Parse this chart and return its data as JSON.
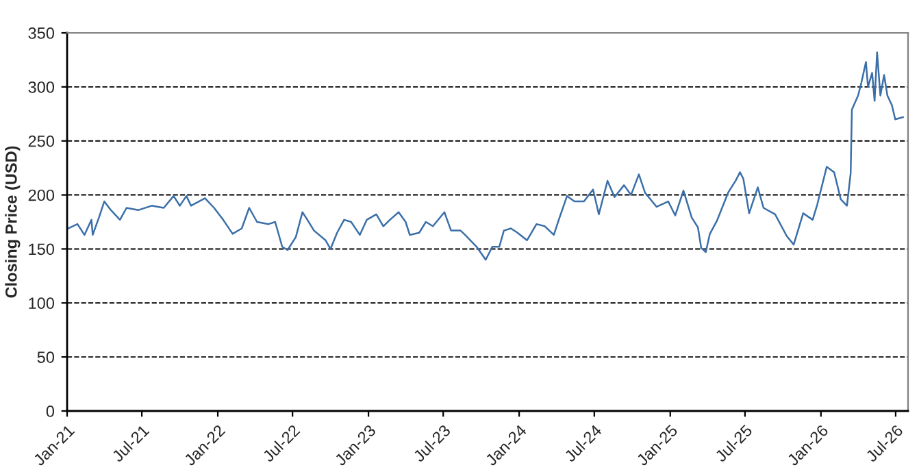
{
  "chart_data": {
    "type": "line",
    "ylabel": "Closing Price (USD)",
    "x": [
      "2021-01-04",
      "2021-01-26",
      "2021-02-12",
      "2021-03-01",
      "2021-03-04",
      "2021-03-20",
      "2021-04-01",
      "2021-04-17",
      "2021-05-09",
      "2021-05-25",
      "2021-06-23",
      "2021-07-25",
      "2021-08-23",
      "2021-09-16",
      "2021-10-01",
      "2021-10-17",
      "2021-10-28",
      "2021-12-01",
      "2021-12-23",
      "2022-01-14",
      "2022-02-06",
      "2022-02-28",
      "2022-03-18",
      "2022-04-06",
      "2022-05-04",
      "2022-05-20",
      "2022-06-06",
      "2022-06-19",
      "2022-07-09",
      "2022-07-25",
      "2022-08-06",
      "2022-08-22",
      "2022-09-19",
      "2022-10-01",
      "2022-10-17",
      "2022-11-03",
      "2022-11-20",
      "2022-12-11",
      "2022-12-28",
      "2023-01-20",
      "2023-02-06",
      "2023-02-22",
      "2023-03-15",
      "2023-04-01",
      "2023-04-11",
      "2023-05-04",
      "2023-05-20",
      "2023-06-06",
      "2023-07-04",
      "2023-07-20",
      "2023-08-12",
      "2023-08-23",
      "2023-09-20",
      "2023-10-12",
      "2023-10-28",
      "2023-11-14",
      "2023-11-25",
      "2023-12-12",
      "2023-12-28",
      "2024-01-20",
      "2024-02-12",
      "2024-03-03",
      "2024-03-25",
      "2024-04-06",
      "2024-04-26",
      "2024-05-14",
      "2024-06-06",
      "2024-06-28",
      "2024-07-12",
      "2024-08-02",
      "2024-08-19",
      "2024-09-11",
      "2024-09-28",
      "2024-10-17",
      "2024-11-01",
      "2024-11-29",
      "2024-12-27",
      "2025-01-13",
      "2025-02-02",
      "2025-02-22",
      "2025-03-09",
      "2025-03-17",
      "2025-03-28",
      "2025-04-07",
      "2025-04-24",
      "2025-05-21",
      "2025-06-08",
      "2025-06-19",
      "2025-06-27",
      "2025-07-11",
      "2025-08-01",
      "2025-08-15",
      "2025-09-12",
      "2025-10-10",
      "2025-10-27",
      "2025-11-19",
      "2025-12-12",
      "2025-12-23",
      "2026-01-15",
      "2026-02-02",
      "2026-02-18",
      "2026-03-05",
      "2026-03-14",
      "2026-03-17",
      "2026-04-01",
      "2026-04-09",
      "2026-04-20",
      "2026-04-25",
      "2026-05-05",
      "2026-05-11",
      "2026-05-17",
      "2026-05-25",
      "2026-06-03",
      "2026-06-11",
      "2026-06-22",
      "2026-06-30",
      "2026-07-19"
    ],
    "series": [
      {
        "color": "#3b6fa8",
        "values": [
          169,
          173,
          163,
          177,
          163,
          180,
          194,
          186,
          177,
          188,
          186,
          190,
          188,
          199,
          190,
          199,
          190,
          197,
          188,
          177,
          164,
          169,
          188,
          175,
          173,
          175,
          152,
          149,
          161,
          184,
          177,
          167,
          158,
          150,
          165,
          177,
          175,
          163,
          177,
          182,
          171,
          177,
          184,
          175,
          163,
          165,
          175,
          171,
          184,
          167,
          167,
          163,
          152,
          140,
          152,
          152,
          167,
          169,
          165,
          158,
          173,
          171,
          163,
          177,
          199,
          194,
          194,
          205,
          182,
          213,
          198,
          209,
          200,
          219,
          202,
          189,
          194,
          181,
          204,
          179,
          170,
          151,
          147,
          164,
          176,
          202,
          213,
          221,
          215,
          183,
          207,
          188,
          182,
          162,
          154,
          183,
          177,
          191,
          226,
          221,
          196,
          190,
          220,
          279,
          292,
          304,
          323,
          300,
          313,
          287,
          332,
          292,
          311,
          292,
          283,
          270,
          272
        ]
      }
    ],
    "xlim": [
      "2021-01-01",
      "2026-07-31"
    ],
    "xticks": [
      {
        "value": "2021-01-01",
        "label": "Jan-21"
      },
      {
        "value": "2021-07-01",
        "label": "Jul-21"
      },
      {
        "value": "2022-01-01",
        "label": "Jan-22"
      },
      {
        "value": "2022-07-01",
        "label": "Jul-22"
      },
      {
        "value": "2023-01-01",
        "label": "Jan-23"
      },
      {
        "value": "2023-07-01",
        "label": "Jul-23"
      },
      {
        "value": "2024-01-01",
        "label": "Jan-24"
      },
      {
        "value": "2024-07-01",
        "label": "Jul-24"
      },
      {
        "value": "2025-01-01",
        "label": "Jan-25"
      },
      {
        "value": "2025-07-01",
        "label": "Jul-25"
      },
      {
        "value": "2026-01-01",
        "label": "Jan-26"
      },
      {
        "value": "2026-07-01",
        "label": "Jul-26"
      }
    ],
    "ylim": [
      0,
      350
    ],
    "yticks": [
      0,
      50,
      100,
      150,
      200,
      250,
      300,
      350
    ],
    "grid": "y",
    "legend": false,
    "marker": "none",
    "line_style": "solid"
  }
}
